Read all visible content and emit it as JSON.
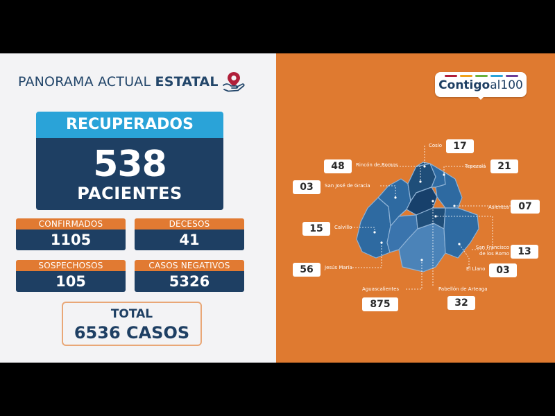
{
  "header": {
    "title_regular": "PANORAMA ACTUAL ",
    "title_bold": "ESTATAL",
    "icon": "map-pin-hand-icon"
  },
  "recovered": {
    "label": "RECUPERADOS",
    "value": "538",
    "unit": "PACIENTES"
  },
  "stats": [
    {
      "label": "CONFIRMADOS",
      "value": "1105"
    },
    {
      "label": "DECESOS",
      "value": "41"
    },
    {
      "label": "SOSPECHOSOS",
      "value": "105"
    },
    {
      "label": "CASOS NEGATIVOS",
      "value": "5326"
    }
  ],
  "total": {
    "label": "TOTAL",
    "value": "6536 CASOS"
  },
  "logo": {
    "text_bold": "Contigo",
    "text_regular": "al100"
  },
  "municipalities": [
    {
      "name": "Cosío",
      "value": "17"
    },
    {
      "name": "Rincón de Romos",
      "value": "48"
    },
    {
      "name": "Tepezalá",
      "value": "21"
    },
    {
      "name": "San José de Gracia",
      "value": "03"
    },
    {
      "name": "Asientos",
      "value": "07"
    },
    {
      "name": "Calvillo",
      "value": "15"
    },
    {
      "name": "San Francisco de los Romo",
      "value": "13"
    },
    {
      "name": "Jesús María",
      "value": "56"
    },
    {
      "name": "El Llano",
      "value": "03"
    },
    {
      "name": "Aguascalientes",
      "value": "875"
    },
    {
      "name": "Pabellón de Arteaga",
      "value": "32"
    }
  ],
  "colors": {
    "navy": "#1e3f63",
    "sky": "#2aa3d8",
    "orange": "#df7a30",
    "map_dark": "#1f4e79",
    "map_mid": "#2e6aa1",
    "map_light": "#4b83b8"
  }
}
